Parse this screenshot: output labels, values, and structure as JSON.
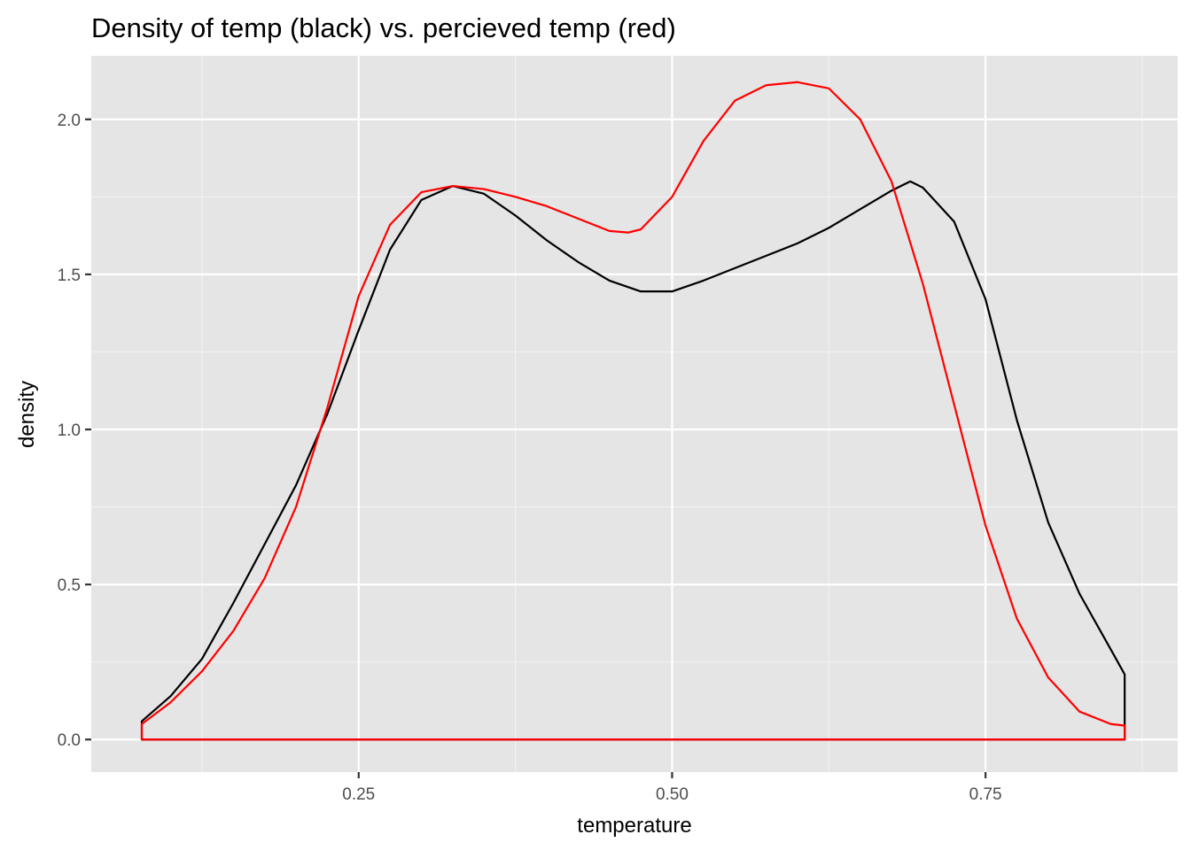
{
  "chart_data": {
    "type": "area",
    "title": "Density of temp (black) vs. percieved temp (red)",
    "xlabel": "temperature",
    "ylabel": "density",
    "xlim": [
      0.0367,
      0.9033
    ],
    "ylim": [
      -0.105,
      2.205
    ],
    "grid": true,
    "x_ticks": [
      {
        "value": 0.25,
        "label": "0.25"
      },
      {
        "value": 0.5,
        "label": "0.50"
      },
      {
        "value": 0.75,
        "label": "0.75"
      }
    ],
    "x_minor": [
      0.125,
      0.375,
      0.625,
      0.875
    ],
    "y_ticks": [
      {
        "value": 0.0,
        "label": "0.0"
      },
      {
        "value": 0.5,
        "label": "0.5"
      },
      {
        "value": 1.0,
        "label": "1.0"
      },
      {
        "value": 1.5,
        "label": "1.5"
      },
      {
        "value": 2.0,
        "label": "2.0"
      }
    ],
    "y_minor": [
      0.25,
      0.75,
      1.25,
      1.75
    ],
    "series": [
      {
        "color": "#000000",
        "x": [
          0.077,
          0.1,
          0.125,
          0.15,
          0.175,
          0.2,
          0.225,
          0.25,
          0.275,
          0.3,
          0.325,
          0.35,
          0.375,
          0.4,
          0.425,
          0.45,
          0.475,
          0.5,
          0.525,
          0.55,
          0.575,
          0.6,
          0.625,
          0.65,
          0.675,
          0.69,
          0.7,
          0.725,
          0.75,
          0.775,
          0.8,
          0.825,
          0.85,
          0.861
        ],
        "y": [
          0.059,
          0.14,
          0.26,
          0.44,
          0.63,
          0.82,
          1.05,
          1.32,
          1.58,
          1.74,
          1.785,
          1.76,
          1.69,
          1.61,
          1.54,
          1.48,
          1.445,
          1.445,
          1.48,
          1.52,
          1.56,
          1.6,
          1.65,
          1.71,
          1.77,
          1.8,
          1.78,
          1.67,
          1.42,
          1.03,
          0.7,
          0.47,
          0.29,
          0.21
        ]
      },
      {
        "color": "#ff0000",
        "x": [
          0.077,
          0.1,
          0.125,
          0.15,
          0.175,
          0.2,
          0.225,
          0.25,
          0.275,
          0.3,
          0.325,
          0.35,
          0.375,
          0.4,
          0.425,
          0.45,
          0.465,
          0.475,
          0.5,
          0.525,
          0.55,
          0.575,
          0.6,
          0.625,
          0.65,
          0.675,
          0.7,
          0.725,
          0.75,
          0.775,
          0.8,
          0.825,
          0.85,
          0.861
        ],
        "y": [
          0.05,
          0.12,
          0.22,
          0.35,
          0.52,
          0.75,
          1.07,
          1.43,
          1.66,
          1.765,
          1.785,
          1.775,
          1.75,
          1.72,
          1.68,
          1.64,
          1.635,
          1.645,
          1.75,
          1.93,
          2.06,
          2.11,
          2.12,
          2.1,
          2.0,
          1.8,
          1.47,
          1.08,
          0.69,
          0.39,
          0.2,
          0.09,
          0.05,
          0.045
        ]
      }
    ]
  }
}
